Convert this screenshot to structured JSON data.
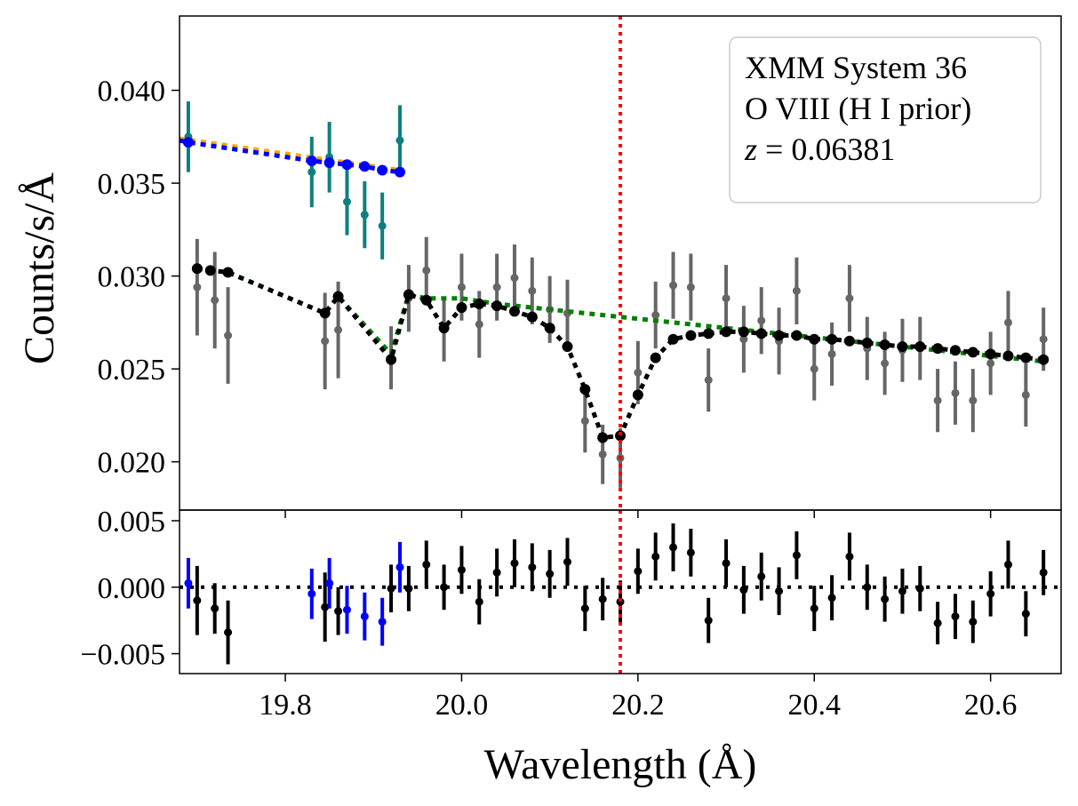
{
  "chart_data": {
    "type": "scatter",
    "legend": {
      "title_line1": "XMM System 36",
      "title_line2": "O VIII (H I prior)",
      "z_symbol": "z",
      "z_equals": " = ",
      "z_value": "0.06381",
      "placement": "top-right"
    },
    "xlabel": "Wavelength (Å)",
    "ylabel": "Counts/s/Å",
    "xlim": [
      19.68,
      20.68
    ],
    "x_ticks": [
      19.8,
      20.0,
      20.2,
      20.4,
      20.6
    ],
    "x_tick_labels": [
      "19.8",
      "20.0",
      "20.2",
      "20.4",
      "20.6"
    ],
    "line_marker": 20.18,
    "top_panel": {
      "ylim": [
        0.0174,
        0.044
      ],
      "y_ticks": [
        0.02,
        0.025,
        0.03,
        0.035,
        0.04
      ],
      "y_tick_labels": [
        "0.020",
        "0.025",
        "0.030",
        "0.035",
        "0.040"
      ],
      "data_black_grey": {
        "x": [
          19.7,
          19.72,
          19.735,
          19.845,
          19.86,
          19.92,
          19.94,
          19.96,
          19.98,
          20.0,
          20.02,
          20.04,
          20.06,
          20.08,
          20.1,
          20.12,
          20.14,
          20.16,
          20.18,
          20.2,
          20.22,
          20.24,
          20.26,
          20.28,
          20.3,
          20.32,
          20.34,
          20.36,
          20.38,
          20.4,
          20.42,
          20.44,
          20.46,
          20.48,
          20.5,
          20.52,
          20.54,
          20.56,
          20.58,
          20.6,
          20.62,
          20.64,
          20.66
        ],
        "y": [
          0.0294,
          0.0287,
          0.0268,
          0.0265,
          0.0271,
          0.0256,
          0.0288,
          0.0303,
          0.0271,
          0.0294,
          0.0274,
          0.0294,
          0.0299,
          0.0292,
          0.0282,
          0.028,
          0.0222,
          0.0204,
          0.0202,
          0.0248,
          0.0279,
          0.0295,
          0.0294,
          0.0244,
          0.0288,
          0.0266,
          0.0276,
          0.0265,
          0.0292,
          0.025,
          0.0258,
          0.0288,
          0.0261,
          0.0253,
          0.026,
          0.0261,
          0.0233,
          0.0237,
          0.0233,
          0.0253,
          0.0275,
          0.0236,
          0.0266
        ],
        "err": [
          0.0026,
          0.0026,
          0.0026,
          0.0026,
          0.0026,
          0.0017,
          0.0018,
          0.0018,
          0.0017,
          0.0018,
          0.0018,
          0.0018,
          0.0018,
          0.0018,
          0.0018,
          0.0018,
          0.0017,
          0.0016,
          0.0016,
          0.0017,
          0.0018,
          0.0018,
          0.0018,
          0.0017,
          0.0018,
          0.0018,
          0.0018,
          0.0018,
          0.0018,
          0.0017,
          0.0017,
          0.0018,
          0.0017,
          0.0017,
          0.0017,
          0.0017,
          0.0017,
          0.0017,
          0.0017,
          0.0017,
          0.0017,
          0.0017,
          0.0017
        ]
      },
      "data_teal": {
        "x": [
          19.69,
          19.83,
          19.85,
          19.87,
          19.89,
          19.91,
          19.93
        ],
        "y": [
          0.0375,
          0.0356,
          0.0364,
          0.034,
          0.0333,
          0.0327,
          0.0373
        ],
        "err": [
          0.0019,
          0.0019,
          0.0019,
          0.0018,
          0.0018,
          0.0018,
          0.0019
        ]
      },
      "model_black": {
        "x": [
          19.7,
          19.715,
          19.735,
          19.845,
          19.86,
          19.92,
          19.94,
          19.96,
          19.98,
          20.0,
          20.02,
          20.04,
          20.06,
          20.08,
          20.1,
          20.12,
          20.14,
          20.16,
          20.18,
          20.2,
          20.22,
          20.24,
          20.26,
          20.28,
          20.3,
          20.32,
          20.34,
          20.36,
          20.38,
          20.4,
          20.42,
          20.44,
          20.46,
          20.48,
          20.5,
          20.52,
          20.54,
          20.56,
          20.58,
          20.6,
          20.62,
          20.64,
          20.66
        ],
        "y": [
          0.0304,
          0.0303,
          0.0302,
          0.028,
          0.0289,
          0.0255,
          0.029,
          0.0287,
          0.0272,
          0.0283,
          0.0285,
          0.0284,
          0.0281,
          0.0278,
          0.0272,
          0.0262,
          0.0239,
          0.0213,
          0.0214,
          0.0236,
          0.0256,
          0.0266,
          0.0268,
          0.0269,
          0.027,
          0.027,
          0.0269,
          0.0268,
          0.0268,
          0.0266,
          0.0266,
          0.0265,
          0.0264,
          0.0263,
          0.0262,
          0.0262,
          0.0261,
          0.026,
          0.0259,
          0.0258,
          0.0257,
          0.0256,
          0.0255
        ]
      },
      "model_green": {
        "x": [
          19.7,
          19.735,
          19.845,
          19.86,
          19.92,
          19.94,
          19.96,
          20.0,
          20.04,
          20.08,
          20.12,
          20.16,
          20.2,
          20.24,
          20.28,
          20.32,
          20.36,
          20.4,
          20.44,
          20.48,
          20.52,
          20.56,
          20.6,
          20.64,
          20.66
        ],
        "y": [
          0.0304,
          0.0302,
          0.028,
          0.0289,
          0.0258,
          0.029,
          0.0288,
          0.0288,
          0.0285,
          0.0283,
          0.0281,
          0.0279,
          0.0277,
          0.0275,
          0.0273,
          0.0271,
          0.0269,
          0.0267,
          0.0265,
          0.0263,
          0.0261,
          0.0259,
          0.0257,
          0.0255,
          0.0254
        ]
      },
      "model_blue": {
        "x": [
          19.68,
          19.69,
          19.83,
          19.85,
          19.87,
          19.89,
          19.91,
          19.93
        ],
        "y": [
          0.0373,
          0.0372,
          0.0362,
          0.0361,
          0.036,
          0.0359,
          0.0357,
          0.0356
        ]
      },
      "model_orange": {
        "x": [
          19.68,
          19.93
        ],
        "y": [
          0.0374,
          0.0357
        ]
      }
    },
    "bottom_panel": {
      "ylim": [
        -0.0065,
        0.0058
      ],
      "y_ticks": [
        -0.005,
        0.0,
        0.005
      ],
      "y_tick_labels": [
        "−0.005",
        "0.000",
        "0.005"
      ],
      "resid_blue": {
        "x": [
          19.69,
          19.83,
          19.85,
          19.87,
          19.89,
          19.91,
          19.93
        ],
        "y": [
          0.0003,
          -0.0005,
          0.0003,
          -0.0017,
          -0.0022,
          -0.0026,
          0.0015
        ],
        "err": [
          0.0019,
          0.0019,
          0.0019,
          0.0018,
          0.0018,
          0.0018,
          0.0019
        ]
      },
      "resid_black": {
        "x": [
          19.7,
          19.72,
          19.735,
          19.845,
          19.86,
          19.92,
          19.94,
          19.96,
          19.98,
          20.0,
          20.02,
          20.04,
          20.06,
          20.08,
          20.1,
          20.12,
          20.14,
          20.16,
          20.18,
          20.2,
          20.22,
          20.24,
          20.26,
          20.28,
          20.3,
          20.32,
          20.34,
          20.36,
          20.38,
          20.4,
          20.42,
          20.44,
          20.46,
          20.48,
          20.5,
          20.52,
          20.54,
          20.56,
          20.58,
          20.6,
          20.62,
          20.64,
          20.66
        ],
        "y": [
          -0.001,
          -0.0016,
          -0.0034,
          -0.0015,
          -0.0018,
          -0.0001,
          -0.0001,
          0.0017,
          0.0,
          0.0013,
          -0.0011,
          0.0011,
          0.0018,
          0.0015,
          0.001,
          0.0019,
          -0.0016,
          -0.0009,
          -0.0011,
          0.0012,
          0.0023,
          0.003,
          0.0026,
          -0.0025,
          0.0018,
          -0.0002,
          0.0008,
          -0.0003,
          0.0024,
          -0.0016,
          -0.0008,
          0.0023,
          0.0,
          -0.0009,
          -0.0003,
          -0.0001,
          -0.0027,
          -0.0022,
          -0.0026,
          -0.0005,
          0.0017,
          -0.002,
          0.0011
        ],
        "err": [
          0.0026,
          0.0019,
          0.0024,
          0.0026,
          0.0018,
          0.0018,
          0.0017,
          0.0018,
          0.0017,
          0.0018,
          0.0017,
          0.0018,
          0.0018,
          0.0018,
          0.0018,
          0.0018,
          0.0017,
          0.0016,
          0.0016,
          0.0017,
          0.0018,
          0.0018,
          0.0018,
          0.0017,
          0.0018,
          0.0018,
          0.0018,
          0.0018,
          0.0018,
          0.0017,
          0.0017,
          0.0018,
          0.0017,
          0.0017,
          0.0017,
          0.0017,
          0.0016,
          0.0017,
          0.0016,
          0.0017,
          0.0018,
          0.0017,
          0.0017
        ]
      }
    },
    "colors": {
      "grey_data": "#666666",
      "teal_data": "#0e7f7f",
      "black": "#000000",
      "green_model": "#008000",
      "blue": "#0000ff",
      "orange_model": "#ffa500",
      "line_marker": "#ff0000"
    }
  }
}
